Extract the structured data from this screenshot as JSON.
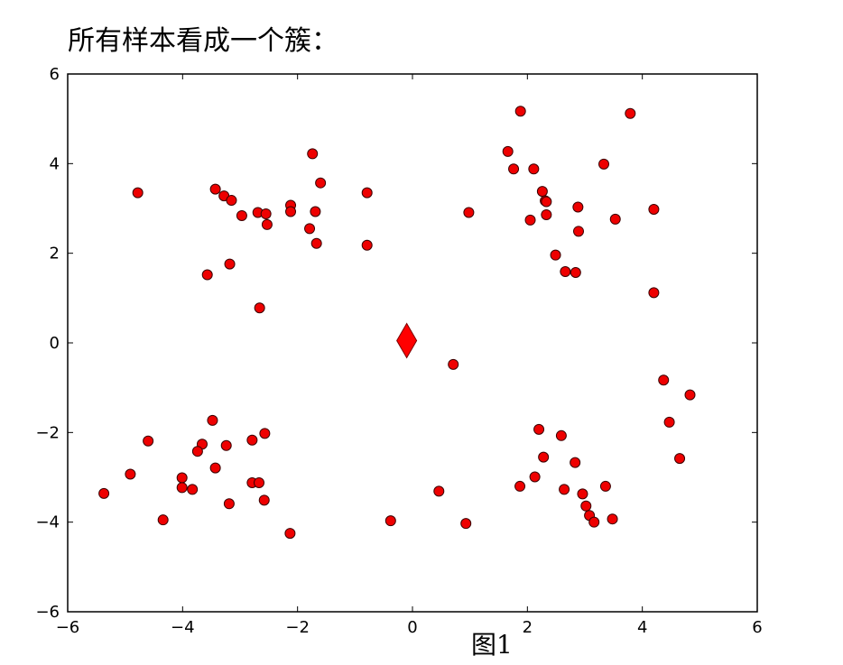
{
  "heading": "所有样本看成一个簇：",
  "caption": "图1",
  "chart_data": {
    "type": "scatter",
    "xlim": [
      -6,
      6
    ],
    "ylim": [
      -6,
      6
    ],
    "xticks": [
      -6,
      -4,
      -2,
      0,
      2,
      4,
      6
    ],
    "yticks": [
      -6,
      -4,
      -2,
      0,
      2,
      4,
      6
    ],
    "xtick_labels": [
      "−6",
      "−4",
      "−2",
      "0",
      "2",
      "4",
      "6"
    ],
    "ytick_labels": [
      "−6",
      "−4",
      "−2",
      "0",
      "2",
      "4",
      "6"
    ],
    "grid": false,
    "series": [
      {
        "marker": "circle",
        "color": "#ee0000",
        "points": [
          [
            -4.78,
            3.35
          ],
          [
            -3.43,
            3.43
          ],
          [
            -3.28,
            3.28
          ],
          [
            -3.15,
            3.18
          ],
          [
            -2.97,
            2.84
          ],
          [
            -2.69,
            2.91
          ],
          [
            -2.55,
            2.88
          ],
          [
            -2.53,
            2.64
          ],
          [
            -2.12,
            3.07
          ],
          [
            -2.12,
            2.93
          ],
          [
            -1.74,
            4.22
          ],
          [
            -1.69,
            2.93
          ],
          [
            -1.6,
            3.57
          ],
          [
            -1.67,
            2.22
          ],
          [
            -1.79,
            2.55
          ],
          [
            -0.79,
            3.35
          ],
          [
            -0.79,
            2.18
          ],
          [
            -3.57,
            1.52
          ],
          [
            -3.18,
            1.76
          ],
          [
            -2.66,
            0.78
          ],
          [
            1.66,
            4.27
          ],
          [
            1.76,
            3.88
          ],
          [
            1.88,
            5.17
          ],
          [
            2.11,
            3.88
          ],
          [
            2.26,
            3.38
          ],
          [
            2.31,
            3.17
          ],
          [
            2.33,
            3.15
          ],
          [
            2.33,
            2.86
          ],
          [
            2.05,
            2.74
          ],
          [
            2.49,
            1.96
          ],
          [
            2.66,
            1.59
          ],
          [
            2.84,
            1.57
          ],
          [
            2.88,
            3.03
          ],
          [
            2.89,
            2.49
          ],
          [
            3.33,
            3.99
          ],
          [
            3.53,
            2.76
          ],
          [
            3.79,
            5.12
          ],
          [
            4.2,
            2.98
          ],
          [
            4.2,
            1.12
          ],
          [
            0.98,
            2.91
          ],
          [
            0.71,
            -0.48
          ],
          [
            4.37,
            -0.83
          ],
          [
            4.83,
            -1.16
          ],
          [
            4.47,
            -1.77
          ],
          [
            4.65,
            -2.58
          ],
          [
            2.2,
            -1.93
          ],
          [
            2.59,
            -2.07
          ],
          [
            2.28,
            -2.55
          ],
          [
            2.13,
            -2.99
          ],
          [
            1.87,
            -3.2
          ],
          [
            2.64,
            -3.27
          ],
          [
            2.83,
            -2.67
          ],
          [
            2.96,
            -3.37
          ],
          [
            3.02,
            -3.64
          ],
          [
            3.08,
            -3.85
          ],
          [
            3.16,
            -4.0
          ],
          [
            3.36,
            -3.2
          ],
          [
            3.48,
            -3.93
          ],
          [
            0.46,
            -3.31
          ],
          [
            0.93,
            -4.03
          ],
          [
            -0.38,
            -3.97
          ],
          [
            -3.48,
            -1.73
          ],
          [
            -4.6,
            -2.19
          ],
          [
            -3.66,
            -2.26
          ],
          [
            -3.74,
            -2.42
          ],
          [
            -3.24,
            -2.29
          ],
          [
            -2.79,
            -2.17
          ],
          [
            -2.57,
            -2.02
          ],
          [
            -3.43,
            -2.79
          ],
          [
            -4.01,
            -3.01
          ],
          [
            -4.01,
            -3.23
          ],
          [
            -3.83,
            -3.27
          ],
          [
            -4.91,
            -2.93
          ],
          [
            -5.37,
            -3.36
          ],
          [
            -4.34,
            -3.95
          ],
          [
            -3.19,
            -3.59
          ],
          [
            -2.79,
            -3.12
          ],
          [
            -2.67,
            -3.12
          ],
          [
            -2.58,
            -3.51
          ],
          [
            -2.13,
            -4.25
          ]
        ]
      },
      {
        "marker": "diamond",
        "color": "#ff0000",
        "points": [
          [
            -0.1,
            0.05
          ]
        ]
      }
    ]
  }
}
